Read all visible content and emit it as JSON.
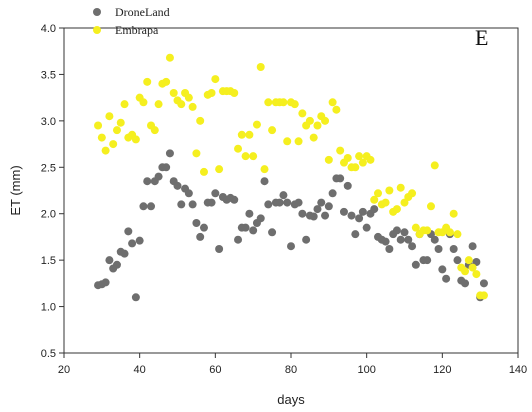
{
  "chart_data": {
    "type": "scatter",
    "panel_label": "E",
    "xlabel": "days",
    "ylabel": "ET (mm)",
    "xlim": [
      20,
      140
    ],
    "ylim": [
      0.5,
      4.0
    ],
    "x_ticks": [
      20,
      40,
      60,
      80,
      100,
      120,
      140
    ],
    "y_ticks": [
      0.5,
      1.0,
      1.5,
      2.0,
      2.5,
      3.0,
      3.5,
      4.0
    ],
    "y_tick_labels": [
      "0.5",
      "1.0",
      "1.5",
      "2.0",
      "2.5",
      "3.0",
      "3.5",
      "4.0"
    ],
    "grid": false,
    "legend_position": "top-left",
    "series": [
      {
        "name": "DroneLand",
        "color": "#6e6e6e",
        "points": [
          [
            29,
            1.23
          ],
          [
            30,
            1.24
          ],
          [
            31,
            1.26
          ],
          [
            32,
            1.5
          ],
          [
            33,
            1.41
          ],
          [
            34,
            1.45
          ],
          [
            35,
            1.59
          ],
          [
            36,
            1.57
          ],
          [
            37,
            1.81
          ],
          [
            38,
            1.68
          ],
          [
            39,
            1.1
          ],
          [
            40,
            1.71
          ],
          [
            41,
            2.08
          ],
          [
            42,
            2.35
          ],
          [
            43,
            2.08
          ],
          [
            44,
            2.35
          ],
          [
            45,
            2.4
          ],
          [
            46,
            2.5
          ],
          [
            47,
            2.5
          ],
          [
            48,
            2.65
          ],
          [
            49,
            2.35
          ],
          [
            50,
            2.3
          ],
          [
            51,
            2.1
          ],
          [
            52,
            2.27
          ],
          [
            53,
            2.22
          ],
          [
            54,
            2.1
          ],
          [
            55,
            1.9
          ],
          [
            56,
            1.75
          ],
          [
            57,
            1.85
          ],
          [
            58,
            2.12
          ],
          [
            59,
            2.12
          ],
          [
            60,
            2.22
          ],
          [
            61,
            1.62
          ],
          [
            62,
            2.18
          ],
          [
            63,
            2.15
          ],
          [
            64,
            2.17
          ],
          [
            65,
            2.15
          ],
          [
            66,
            1.72
          ],
          [
            67,
            1.85
          ],
          [
            68,
            1.85
          ],
          [
            69,
            2.0
          ],
          [
            70,
            1.82
          ],
          [
            71,
            1.9
          ],
          [
            72,
            1.95
          ],
          [
            73,
            2.35
          ],
          [
            74,
            2.1
          ],
          [
            75,
            1.8
          ],
          [
            76,
            2.12
          ],
          [
            77,
            2.12
          ],
          [
            78,
            2.2
          ],
          [
            79,
            2.12
          ],
          [
            80,
            1.65
          ],
          [
            81,
            2.1
          ],
          [
            82,
            2.12
          ],
          [
            83,
            2.0
          ],
          [
            84,
            1.72
          ],
          [
            85,
            1.98
          ],
          [
            86,
            1.97
          ],
          [
            87,
            2.05
          ],
          [
            88,
            2.12
          ],
          [
            89,
            1.98
          ],
          [
            90,
            2.08
          ],
          [
            91,
            2.22
          ],
          [
            92,
            2.38
          ],
          [
            93,
            2.38
          ],
          [
            94,
            2.02
          ],
          [
            95,
            2.3
          ],
          [
            96,
            1.98
          ],
          [
            97,
            1.78
          ],
          [
            98,
            1.95
          ],
          [
            99,
            2.02
          ],
          [
            100,
            1.85
          ],
          [
            101,
            2.0
          ],
          [
            102,
            2.05
          ],
          [
            103,
            1.75
          ],
          [
            104,
            1.72
          ],
          [
            105,
            1.7
          ],
          [
            106,
            1.62
          ],
          [
            107,
            1.78
          ],
          [
            108,
            1.82
          ],
          [
            109,
            1.72
          ],
          [
            110,
            1.8
          ],
          [
            111,
            1.72
          ],
          [
            112,
            1.65
          ],
          [
            113,
            1.45
          ],
          [
            114,
            1.78
          ],
          [
            115,
            1.5
          ],
          [
            116,
            1.5
          ],
          [
            117,
            1.78
          ],
          [
            118,
            1.72
          ],
          [
            119,
            1.62
          ],
          [
            120,
            1.4
          ],
          [
            121,
            1.3
          ],
          [
            122,
            1.78
          ],
          [
            123,
            1.62
          ],
          [
            124,
            1.5
          ],
          [
            125,
            1.28
          ],
          [
            126,
            1.25
          ],
          [
            127,
            1.45
          ],
          [
            128,
            1.65
          ],
          [
            129,
            1.48
          ],
          [
            130,
            1.1
          ],
          [
            131,
            1.25
          ]
        ]
      },
      {
        "name": "Embrapa",
        "color": "#f5ef1f",
        "points": [
          [
            29,
            2.95
          ],
          [
            30,
            2.82
          ],
          [
            31,
            2.68
          ],
          [
            32,
            3.05
          ],
          [
            33,
            2.75
          ],
          [
            34,
            2.9
          ],
          [
            35,
            2.98
          ],
          [
            36,
            3.18
          ],
          [
            37,
            2.82
          ],
          [
            38,
            2.85
          ],
          [
            39,
            2.8
          ],
          [
            40,
            3.25
          ],
          [
            41,
            3.2
          ],
          [
            42,
            3.42
          ],
          [
            43,
            2.95
          ],
          [
            44,
            2.9
          ],
          [
            45,
            3.18
          ],
          [
            46,
            3.4
          ],
          [
            47,
            3.42
          ],
          [
            48,
            3.68
          ],
          [
            49,
            3.3
          ],
          [
            50,
            3.22
          ],
          [
            51,
            3.18
          ],
          [
            52,
            3.3
          ],
          [
            53,
            3.25
          ],
          [
            54,
            3.15
          ],
          [
            55,
            2.65
          ],
          [
            56,
            3.0
          ],
          [
            57,
            2.45
          ],
          [
            58,
            3.28
          ],
          [
            59,
            3.3
          ],
          [
            60,
            3.45
          ],
          [
            61,
            2.48
          ],
          [
            62,
            3.32
          ],
          [
            63,
            3.32
          ],
          [
            64,
            3.32
          ],
          [
            65,
            3.3
          ],
          [
            66,
            2.7
          ],
          [
            67,
            2.85
          ],
          [
            68,
            2.62
          ],
          [
            69,
            2.85
          ],
          [
            70,
            2.62
          ],
          [
            71,
            2.96
          ],
          [
            72,
            3.58
          ],
          [
            73,
            2.48
          ],
          [
            74,
            3.2
          ],
          [
            75,
            2.9
          ],
          [
            76,
            3.2
          ],
          [
            77,
            3.2
          ],
          [
            78,
            3.2
          ],
          [
            79,
            2.78
          ],
          [
            80,
            3.2
          ],
          [
            81,
            3.18
          ],
          [
            82,
            2.78
          ],
          [
            83,
            3.08
          ],
          [
            84,
            2.95
          ],
          [
            85,
            3.0
          ],
          [
            86,
            2.82
          ],
          [
            87,
            2.95
          ],
          [
            88,
            3.05
          ],
          [
            89,
            3.0
          ],
          [
            90,
            2.58
          ],
          [
            91,
            3.2
          ],
          [
            92,
            3.12
          ],
          [
            93,
            2.68
          ],
          [
            94,
            2.55
          ],
          [
            95,
            2.6
          ],
          [
            96,
            2.5
          ],
          [
            97,
            2.5
          ],
          [
            98,
            2.62
          ],
          [
            99,
            2.55
          ],
          [
            100,
            2.62
          ],
          [
            101,
            2.58
          ],
          [
            102,
            2.15
          ],
          [
            103,
            2.22
          ],
          [
            104,
            2.1
          ],
          [
            105,
            2.12
          ],
          [
            106,
            2.25
          ],
          [
            107,
            2.02
          ],
          [
            108,
            2.05
          ],
          [
            109,
            2.28
          ],
          [
            110,
            2.12
          ],
          [
            111,
            2.18
          ],
          [
            112,
            2.22
          ],
          [
            113,
            1.85
          ],
          [
            114,
            1.78
          ],
          [
            115,
            1.82
          ],
          [
            116,
            1.82
          ],
          [
            117,
            2.08
          ],
          [
            118,
            2.52
          ],
          [
            119,
            1.8
          ],
          [
            120,
            1.8
          ],
          [
            121,
            1.85
          ],
          [
            122,
            1.8
          ],
          [
            123,
            2.0
          ],
          [
            124,
            1.78
          ],
          [
            125,
            1.42
          ],
          [
            126,
            1.38
          ],
          [
            127,
            1.5
          ],
          [
            128,
            1.42
          ],
          [
            129,
            1.35
          ],
          [
            130,
            1.12
          ],
          [
            131,
            1.12
          ]
        ]
      }
    ]
  }
}
